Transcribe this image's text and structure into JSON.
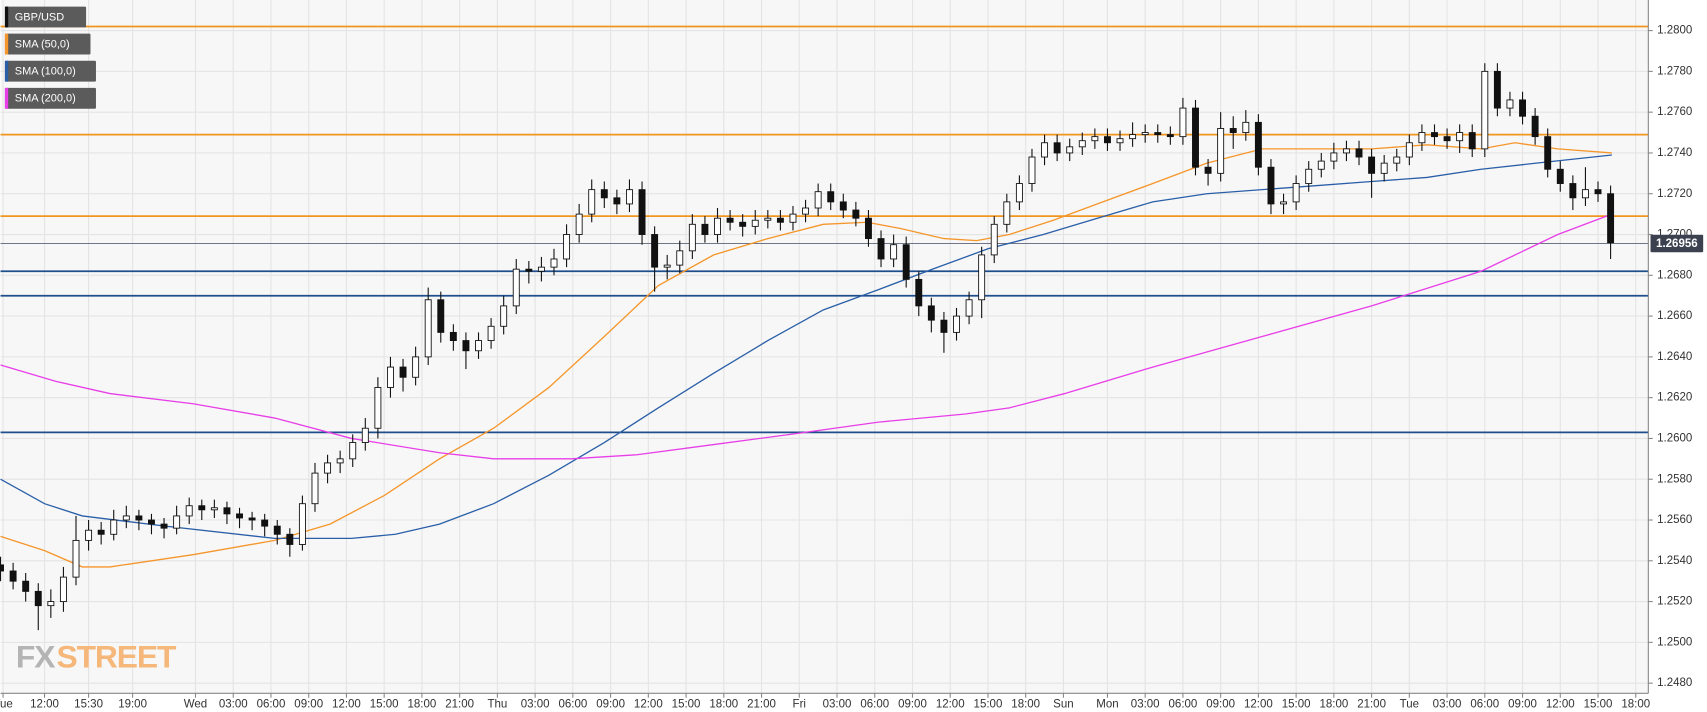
{
  "chart_data": {
    "type": "candlestick",
    "symbol": "GBP/USD",
    "watermark": [
      "FX",
      "STREET"
    ],
    "last_price": {
      "value": 1.26956,
      "label": "1.26956"
    },
    "xlim": [
      0,
      131
    ],
    "ylim": [
      1.2475,
      1.2815
    ],
    "grid": true,
    "up_color": "#ffffff",
    "down_color": "#111111",
    "xticks": [
      {
        "value": 0.2,
        "label": "Tue"
      },
      {
        "value": 3.5,
        "label": "12:00"
      },
      {
        "value": 7,
        "label": "15:30"
      },
      {
        "value": 10.5,
        "label": "19:00"
      },
      {
        "value": 15.5,
        "label": "Wed"
      },
      {
        "value": 18.5,
        "label": "03:00"
      },
      {
        "value": 21.5,
        "label": "06:00"
      },
      {
        "value": 24.5,
        "label": "09:00"
      },
      {
        "value": 27.5,
        "label": "12:00"
      },
      {
        "value": 30.5,
        "label": "15:00"
      },
      {
        "value": 33.5,
        "label": "18:00"
      },
      {
        "value": 36.5,
        "label": "21:00"
      },
      {
        "value": 39.5,
        "label": "Thu"
      },
      {
        "value": 42.5,
        "label": "03:00"
      },
      {
        "value": 45.5,
        "label": "06:00"
      },
      {
        "value": 48.5,
        "label": "09:00"
      },
      {
        "value": 51.5,
        "label": "12:00"
      },
      {
        "value": 54.5,
        "label": "15:00"
      },
      {
        "value": 57.5,
        "label": "18:00"
      },
      {
        "value": 60.5,
        "label": "21:00"
      },
      {
        "value": 63.5,
        "label": "Fri"
      },
      {
        "value": 66.5,
        "label": "03:00"
      },
      {
        "value": 69.5,
        "label": "06:00"
      },
      {
        "value": 72.5,
        "label": "09:00"
      },
      {
        "value": 75.5,
        "label": "12:00"
      },
      {
        "value": 78.5,
        "label": "15:00"
      },
      {
        "value": 81.5,
        "label": "18:00"
      },
      {
        "value": 84.5,
        "label": "Sun"
      },
      {
        "value": 88,
        "label": "Mon"
      },
      {
        "value": 91,
        "label": "03:00"
      },
      {
        "value": 94,
        "label": "06:00"
      },
      {
        "value": 97,
        "label": "09:00"
      },
      {
        "value": 100,
        "label": "12:00"
      },
      {
        "value": 103,
        "label": "15:00"
      },
      {
        "value": 106,
        "label": "18:00"
      },
      {
        "value": 109,
        "label": "21:00"
      },
      {
        "value": 112,
        "label": "Tue"
      },
      {
        "value": 115,
        "label": "03:00"
      },
      {
        "value": 118,
        "label": "06:00"
      },
      {
        "value": 121,
        "label": "09:00"
      },
      {
        "value": 124,
        "label": "12:00"
      },
      {
        "value": 127,
        "label": "15:00"
      },
      {
        "value": 130,
        "label": "18:00"
      }
    ],
    "yticks": [
      {
        "value": 1.248,
        "label": "1.2480"
      },
      {
        "value": 1.25,
        "label": "1.2500"
      },
      {
        "value": 1.252,
        "label": "1.2520"
      },
      {
        "value": 1.254,
        "label": "1.2540"
      },
      {
        "value": 1.256,
        "label": "1.2560"
      },
      {
        "value": 1.258,
        "label": "1.2580"
      },
      {
        "value": 1.26,
        "label": "1.2600"
      },
      {
        "value": 1.262,
        "label": "1.2620"
      },
      {
        "value": 1.264,
        "label": "1.2640"
      },
      {
        "value": 1.266,
        "label": "1.2660"
      },
      {
        "value": 1.268,
        "label": "1.2680"
      },
      {
        "value": 1.27,
        "label": "1.2700"
      },
      {
        "value": 1.272,
        "label": "1.2720"
      },
      {
        "value": 1.274,
        "label": "1.2740"
      },
      {
        "value": 1.276,
        "label": "1.2760"
      },
      {
        "value": 1.278,
        "label": "1.2780"
      },
      {
        "value": 1.28,
        "label": "1.2800"
      }
    ],
    "levels": [
      {
        "value": 1.2802,
        "color": "#f0961e"
      },
      {
        "value": 1.2749,
        "color": "#f0961e"
      },
      {
        "value": 1.2709,
        "color": "#f0961e"
      },
      {
        "value": 1.2682,
        "color": "#1f4e8c"
      },
      {
        "value": 1.267,
        "color": "#1f4e8c"
      },
      {
        "value": 1.2603,
        "color": "#1f4e8c"
      }
    ],
    "ohlc": [
      [
        1.2538,
        1.2542,
        1.253,
        1.2535
      ],
      [
        1.2535,
        1.2539,
        1.2526,
        1.253
      ],
      [
        1.253,
        1.2534,
        1.252,
        1.2525
      ],
      [
        1.2525,
        1.2529,
        1.2506,
        1.2518
      ],
      [
        1.2518,
        1.2526,
        1.2512,
        1.252
      ],
      [
        1.252,
        1.2537,
        1.2515,
        1.2532
      ],
      [
        1.2532,
        1.2562,
        1.2528,
        1.255
      ],
      [
        1.255,
        1.256,
        1.2545,
        1.2555
      ],
      [
        1.2555,
        1.2559,
        1.2548,
        1.2553
      ],
      [
        1.2553,
        1.2565,
        1.255,
        1.256
      ],
      [
        1.256,
        1.2567,
        1.2556,
        1.2562
      ],
      [
        1.2562,
        1.2565,
        1.2555,
        1.256
      ],
      [
        1.256,
        1.2563,
        1.2553,
        1.2558
      ],
      [
        1.2558,
        1.2561,
        1.2551,
        1.2556
      ],
      [
        1.2556,
        1.2567,
        1.2553,
        1.2562
      ],
      [
        1.2562,
        1.2571,
        1.2558,
        1.2567
      ],
      [
        1.2567,
        1.257,
        1.256,
        1.2565
      ],
      [
        1.2565,
        1.257,
        1.2561,
        1.2566
      ],
      [
        1.2566,
        1.2569,
        1.2558,
        1.2563
      ],
      [
        1.2563,
        1.2566,
        1.2556,
        1.2561
      ],
      [
        1.2561,
        1.2564,
        1.2555,
        1.256
      ],
      [
        1.256,
        1.2563,
        1.2552,
        1.2557
      ],
      [
        1.2557,
        1.256,
        1.2548,
        1.2553
      ],
      [
        1.2553,
        1.2556,
        1.2542,
        1.2548
      ],
      [
        1.2548,
        1.2572,
        1.2545,
        1.2568
      ],
      [
        1.2568,
        1.2588,
        1.2564,
        1.2583
      ],
      [
        1.2583,
        1.2592,
        1.2578,
        1.2588
      ],
      [
        1.2588,
        1.2594,
        1.2583,
        1.259
      ],
      [
        1.259,
        1.2602,
        1.2586,
        1.2598
      ],
      [
        1.2598,
        1.261,
        1.2594,
        1.2605
      ],
      [
        1.2605,
        1.263,
        1.26,
        1.2625
      ],
      [
        1.2625,
        1.264,
        1.262,
        1.2635
      ],
      [
        1.2635,
        1.2639,
        1.2623,
        1.263
      ],
      [
        1.263,
        1.2645,
        1.2626,
        1.264
      ],
      [
        1.264,
        1.2674,
        1.2636,
        1.2668
      ],
      [
        1.2668,
        1.2672,
        1.2647,
        1.2652
      ],
      [
        1.2652,
        1.2656,
        1.2643,
        1.2648
      ],
      [
        1.2648,
        1.2652,
        1.2634,
        1.2643
      ],
      [
        1.2643,
        1.2652,
        1.2639,
        1.2648
      ],
      [
        1.2648,
        1.2659,
        1.2644,
        1.2655
      ],
      [
        1.2655,
        1.267,
        1.2651,
        1.2665
      ],
      [
        1.2665,
        1.2688,
        1.2661,
        1.2683
      ],
      [
        1.2683,
        1.2687,
        1.2676,
        1.2682
      ],
      [
        1.2682,
        1.2689,
        1.2677,
        1.2684
      ],
      [
        1.2684,
        1.2693,
        1.268,
        1.2688
      ],
      [
        1.2688,
        1.2705,
        1.2684,
        1.27
      ],
      [
        1.27,
        1.2715,
        1.2696,
        1.271
      ],
      [
        1.271,
        1.2727,
        1.2706,
        1.2722
      ],
      [
        1.2722,
        1.2726,
        1.2713,
        1.2718
      ],
      [
        1.2718,
        1.2722,
        1.271,
        1.2715
      ],
      [
        1.2715,
        1.2727,
        1.2711,
        1.2722
      ],
      [
        1.2722,
        1.2726,
        1.2695,
        1.27
      ],
      [
        1.27,
        1.2704,
        1.2672,
        1.2684
      ],
      [
        1.2684,
        1.269,
        1.2678,
        1.2685
      ],
      [
        1.2685,
        1.2697,
        1.2681,
        1.2692
      ],
      [
        1.2692,
        1.271,
        1.2688,
        1.2705
      ],
      [
        1.2705,
        1.2709,
        1.2696,
        1.27
      ],
      [
        1.27,
        1.2713,
        1.2696,
        1.2708
      ],
      [
        1.2708,
        1.2712,
        1.2702,
        1.2706
      ],
      [
        1.2706,
        1.271,
        1.2699,
        1.2704
      ],
      [
        1.2704,
        1.2712,
        1.27,
        1.2707
      ],
      [
        1.2707,
        1.2712,
        1.2703,
        1.2708
      ],
      [
        1.2708,
        1.2712,
        1.2702,
        1.2706
      ],
      [
        1.2706,
        1.2714,
        1.2702,
        1.271
      ],
      [
        1.271,
        1.2717,
        1.2706,
        1.2713
      ],
      [
        1.2713,
        1.2725,
        1.2709,
        1.2721
      ],
      [
        1.2721,
        1.2725,
        1.2712,
        1.2716
      ],
      [
        1.2716,
        1.272,
        1.2708,
        1.2712
      ],
      [
        1.2712,
        1.2716,
        1.2704,
        1.2708
      ],
      [
        1.2708,
        1.2712,
        1.2694,
        1.2698
      ],
      [
        1.2698,
        1.2702,
        1.2684,
        1.2688
      ],
      [
        1.2688,
        1.27,
        1.2684,
        1.2695
      ],
      [
        1.2695,
        1.2699,
        1.2674,
        1.2678
      ],
      [
        1.2678,
        1.2682,
        1.266,
        1.2665
      ],
      [
        1.2665,
        1.2669,
        1.2652,
        1.2658
      ],
      [
        1.2658,
        1.2662,
        1.2642,
        1.2652
      ],
      [
        1.2652,
        1.2664,
        1.2648,
        1.266
      ],
      [
        1.266,
        1.2672,
        1.2656,
        1.2668
      ],
      [
        1.2668,
        1.2694,
        1.2659,
        1.269
      ],
      [
        1.269,
        1.2709,
        1.2686,
        1.2705
      ],
      [
        1.2705,
        1.272,
        1.2701,
        1.2716
      ],
      [
        1.2716,
        1.2729,
        1.2712,
        1.2725
      ],
      [
        1.2725,
        1.2742,
        1.2721,
        1.2738
      ],
      [
        1.2738,
        1.2749,
        1.2734,
        1.2745
      ],
      [
        1.2745,
        1.2749,
        1.2736,
        1.274
      ],
      [
        1.274,
        1.2747,
        1.2736,
        1.2743
      ],
      [
        1.2743,
        1.275,
        1.2739,
        1.2746
      ],
      [
        1.2746,
        1.2752,
        1.2742,
        1.2748
      ],
      [
        1.2748,
        1.2752,
        1.2741,
        1.2745
      ],
      [
        1.2745,
        1.2751,
        1.2741,
        1.2747
      ],
      [
        1.2747,
        1.2755,
        1.2743,
        1.2749
      ],
      [
        1.2749,
        1.2754,
        1.2745,
        1.275
      ],
      [
        1.275,
        1.2754,
        1.2745,
        1.2749
      ],
      [
        1.2749,
        1.2753,
        1.2744,
        1.2748
      ],
      [
        1.2748,
        1.2767,
        1.2744,
        1.2762
      ],
      [
        1.2762,
        1.2766,
        1.2729,
        1.2733
      ],
      [
        1.2733,
        1.2737,
        1.2724,
        1.273
      ],
      [
        1.273,
        1.276,
        1.2726,
        1.2752
      ],
      [
        1.2752,
        1.2758,
        1.2742,
        1.275
      ],
      [
        1.275,
        1.2761,
        1.2746,
        1.2755
      ],
      [
        1.2755,
        1.2759,
        1.2729,
        1.2733
      ],
      [
        1.2733,
        1.2737,
        1.271,
        1.2715
      ],
      [
        1.2715,
        1.272,
        1.271,
        1.2716
      ],
      [
        1.2716,
        1.2729,
        1.2712,
        1.2725
      ],
      [
        1.2725,
        1.2736,
        1.2721,
        1.2732
      ],
      [
        1.2732,
        1.274,
        1.2728,
        1.2736
      ],
      [
        1.2736,
        1.2745,
        1.2732,
        1.274
      ],
      [
        1.274,
        1.2746,
        1.2736,
        1.2742
      ],
      [
        1.2742,
        1.2746,
        1.2734,
        1.2738
      ],
      [
        1.2738,
        1.2742,
        1.2718,
        1.273
      ],
      [
        1.273,
        1.2739,
        1.2726,
        1.2735
      ],
      [
        1.2735,
        1.2742,
        1.2731,
        1.2738
      ],
      [
        1.2738,
        1.2749,
        1.2734,
        1.2745
      ],
      [
        1.2745,
        1.2754,
        1.2741,
        1.275
      ],
      [
        1.275,
        1.2754,
        1.2744,
        1.2748
      ],
      [
        1.2748,
        1.2752,
        1.2742,
        1.2746
      ],
      [
        1.2746,
        1.2754,
        1.274,
        1.275
      ],
      [
        1.275,
        1.2754,
        1.2738,
        1.2742
      ],
      [
        1.2742,
        1.2784,
        1.2738,
        1.278
      ],
      [
        1.278,
        1.2784,
        1.2758,
        1.2762
      ],
      [
        1.2762,
        1.277,
        1.2758,
        1.2766
      ],
      [
        1.2766,
        1.277,
        1.2754,
        1.2758
      ],
      [
        1.2758,
        1.2762,
        1.2744,
        1.2748
      ],
      [
        1.2748,
        1.2752,
        1.2728,
        1.2732
      ],
      [
        1.2732,
        1.2736,
        1.2721,
        1.2725
      ],
      [
        1.2725,
        1.2729,
        1.2712,
        1.2718
      ],
      [
        1.2718,
        1.2733,
        1.2714,
        1.2722
      ],
      [
        1.2722,
        1.2726,
        1.2716,
        1.272
      ],
      [
        1.272,
        1.2724,
        1.2688,
        1.2696
      ]
    ],
    "series": [
      {
        "name": "SMA (50,0)",
        "color": "#f5962a",
        "x": [
          0,
          3.5,
          6.5,
          8.7,
          15.3,
          21.8,
          26.2,
          30.5,
          34.9,
          39.2,
          43.6,
          48,
          52.3,
          56.7,
          61,
          65.4,
          68.9,
          71.5,
          75,
          77.6,
          80.2,
          83.7,
          87.2,
          91.6,
          95.9,
          100.3,
          104.7,
          109,
          113.4,
          117.7,
          120.4,
          123.8,
          128.1
        ],
        "values": [
          1.2552,
          1.2545,
          1.2537,
          1.2537,
          1.2543,
          1.255,
          1.2558,
          1.2572,
          1.259,
          1.2605,
          1.2625,
          1.265,
          1.2675,
          1.269,
          1.2698,
          1.2705,
          1.2706,
          1.2703,
          1.2698,
          1.2697,
          1.27,
          1.2707,
          1.2715,
          1.2725,
          1.2735,
          1.2742,
          1.2742,
          1.2742,
          1.2744,
          1.2742,
          1.2745,
          1.2742,
          1.274
        ]
      },
      {
        "name": "SMA (100,0)",
        "color": "#2a5fa8",
        "x": [
          0,
          3.5,
          6.5,
          13.1,
          21.8,
          27.9,
          31.4,
          34.9,
          39.2,
          43.6,
          48,
          52.3,
          56.7,
          61,
          65.4,
          69.8,
          74.1,
          78.5,
          82.9,
          87.2,
          91.6,
          95.9,
          100.3,
          104.7,
          109,
          113.4,
          117.7,
          122.1,
          128.1
        ],
        "values": [
          1.258,
          1.2568,
          1.2562,
          1.2557,
          1.2551,
          1.2551,
          1.2553,
          1.2558,
          1.2568,
          1.2582,
          1.2598,
          1.2615,
          1.2632,
          1.2648,
          1.2663,
          1.2673,
          1.2683,
          1.2693,
          1.27,
          1.2708,
          1.2716,
          1.272,
          1.2722,
          1.2724,
          1.2726,
          1.2728,
          1.2732,
          1.2735,
          1.2739
        ]
      },
      {
        "name": "SMA (200,0)",
        "color": "#e83ee8",
        "x": [
          0,
          4.4,
          8.7,
          15.3,
          21.8,
          27.9,
          34.9,
          39.2,
          45.4,
          50.6,
          56.7,
          62.8,
          69.8,
          76.7,
          80.2,
          84.6,
          91.6,
          100.3,
          109,
          117.7,
          123.8,
          128.1
        ],
        "values": [
          1.2636,
          1.2628,
          1.2622,
          1.2617,
          1.261,
          1.26,
          1.2593,
          1.259,
          1.259,
          1.2592,
          1.2597,
          1.2602,
          1.2608,
          1.2612,
          1.2615,
          1.2622,
          1.2635,
          1.265,
          1.2665,
          1.2682,
          1.27,
          1.271
        ]
      }
    ]
  }
}
